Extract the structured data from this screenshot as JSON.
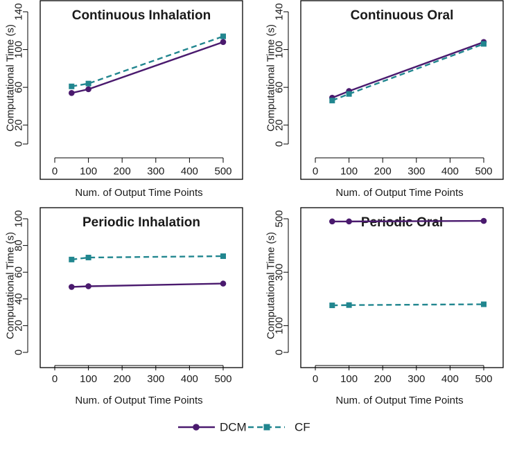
{
  "colors": {
    "dcm": "#4a1a6e",
    "cf": "#21868f"
  },
  "legend": {
    "dcm_label": "DCM",
    "cf_label": "CF"
  },
  "chart_data": [
    {
      "type": "line",
      "title": "Continuous Inhalation",
      "xlabel": "Num. of Output Time Points",
      "ylabel": "Computational Time (s)",
      "xlim": [
        0,
        500
      ],
      "xticks": [
        0,
        100,
        200,
        300,
        400,
        500
      ],
      "ylim": [
        0,
        140
      ],
      "yticks": [
        0,
        20,
        60,
        100,
        140
      ],
      "x": [
        50,
        100,
        500
      ],
      "series": [
        {
          "name": "DCM",
          "values": [
            54,
            58,
            108
          ]
        },
        {
          "name": "CF",
          "values": [
            61,
            64,
            114
          ]
        }
      ]
    },
    {
      "type": "line",
      "title": "Continuous Oral",
      "xlabel": "Num. of Output Time Points",
      "ylabel": "Computational Time (s)",
      "xlim": [
        0,
        500
      ],
      "xticks": [
        0,
        100,
        200,
        300,
        400,
        500
      ],
      "ylim": [
        0,
        140
      ],
      "yticks": [
        0,
        20,
        60,
        100,
        140
      ],
      "x": [
        50,
        100,
        500
      ],
      "series": [
        {
          "name": "DCM",
          "values": [
            49,
            56,
            108
          ]
        },
        {
          "name": "CF",
          "values": [
            46,
            53,
            106
          ]
        }
      ]
    },
    {
      "type": "line",
      "title": "Periodic Inhalation",
      "xlabel": "Num. of Output Time Points",
      "ylabel": "Computational Time (s)",
      "xlim": [
        0,
        500
      ],
      "xticks": [
        0,
        100,
        200,
        300,
        400,
        500
      ],
      "ylim": [
        0,
        100
      ],
      "yticks": [
        0,
        20,
        40,
        60,
        80,
        100
      ],
      "x": [
        50,
        100,
        500
      ],
      "series": [
        {
          "name": "DCM",
          "values": [
            49,
            49.5,
            51.5
          ]
        },
        {
          "name": "CF",
          "values": [
            69.5,
            71,
            72
          ]
        }
      ]
    },
    {
      "type": "line",
      "title": "Periodic Oral",
      "xlabel": "Num. of Output Time Points",
      "ylabel": "Computational Time (s)",
      "xlim": [
        0,
        500
      ],
      "xticks": [
        0,
        100,
        200,
        300,
        400,
        500
      ],
      "ylim": [
        0,
        500
      ],
      "yticks": [
        0,
        100,
        300,
        500
      ],
      "x": [
        50,
        100,
        500
      ],
      "series": [
        {
          "name": "DCM",
          "values": [
            490,
            490,
            492
          ]
        },
        {
          "name": "CF",
          "values": [
            176,
            177,
            180
          ]
        }
      ]
    }
  ]
}
